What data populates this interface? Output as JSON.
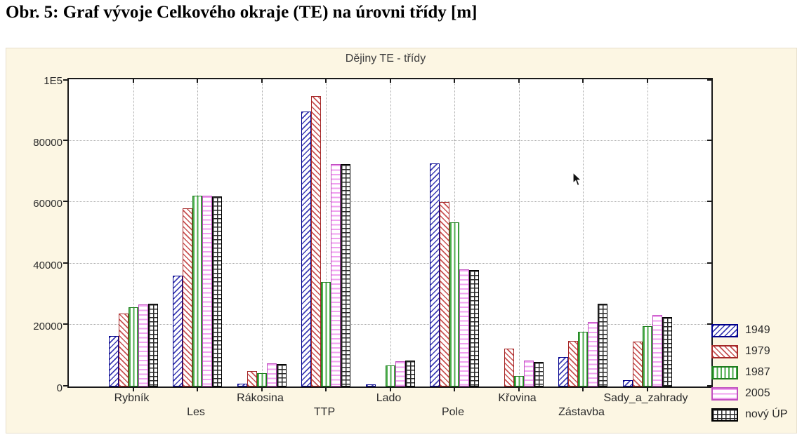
{
  "page": {
    "caption": "Obr. 5: Graf vývoje Celkového okraje (TE) na úrovni třídy [m]"
  },
  "chart_data": {
    "type": "bar",
    "title": "Dějiny TE - třídy",
    "xlabel": "",
    "ylabel": "",
    "ylim": [
      0,
      100000
    ],
    "yticks": [
      0,
      20000,
      40000,
      60000,
      80000,
      100000
    ],
    "ytick_labels": [
      "0",
      "20000",
      "40000",
      "60000",
      "80000",
      "1E5"
    ],
    "grid": true,
    "legend_position": "right-bottom",
    "plot_bg": "#ffffff",
    "figure_bg": "#fcf6e3",
    "categories": [
      "Rybník",
      "Les",
      "Rákosina",
      "TTP",
      "Lado",
      "Pole",
      "Křovina",
      "Zástavba",
      "Sady_a_zahrady"
    ],
    "series": [
      {
        "name": "1949",
        "hatch": "diag-up",
        "border": "#00008b",
        "line": "#3c3cb4",
        "values": [
          16500,
          36000,
          1000,
          89500,
          800,
          72500,
          0,
          9700,
          2000
        ]
      },
      {
        "name": "1979",
        "hatch": "diag-down",
        "border": "#a52828",
        "line": "#c85050",
        "values": [
          23700,
          58000,
          5000,
          94500,
          0,
          60000,
          12400,
          14900,
          14700
        ]
      },
      {
        "name": "1987",
        "hatch": "vertical",
        "border": "#1e7d1e",
        "line": "#4cae4c",
        "values": [
          25800,
          62000,
          4300,
          34000,
          6800,
          53500,
          3400,
          17900,
          19700
        ]
      },
      {
        "name": "2005",
        "hatch": "horizontal",
        "border": "#c050c0",
        "line": "#f0a0f0",
        "values": [
          26700,
          62000,
          7600,
          72300,
          8200,
          38200,
          8400,
          21000,
          23400
        ]
      },
      {
        "name": "nový ÚP",
        "hatch": "grid",
        "border": "#000000",
        "line": "#282828",
        "values": [
          27000,
          61800,
          7300,
          72300,
          8400,
          37800,
          7900,
          26900,
          22700
        ]
      }
    ]
  }
}
